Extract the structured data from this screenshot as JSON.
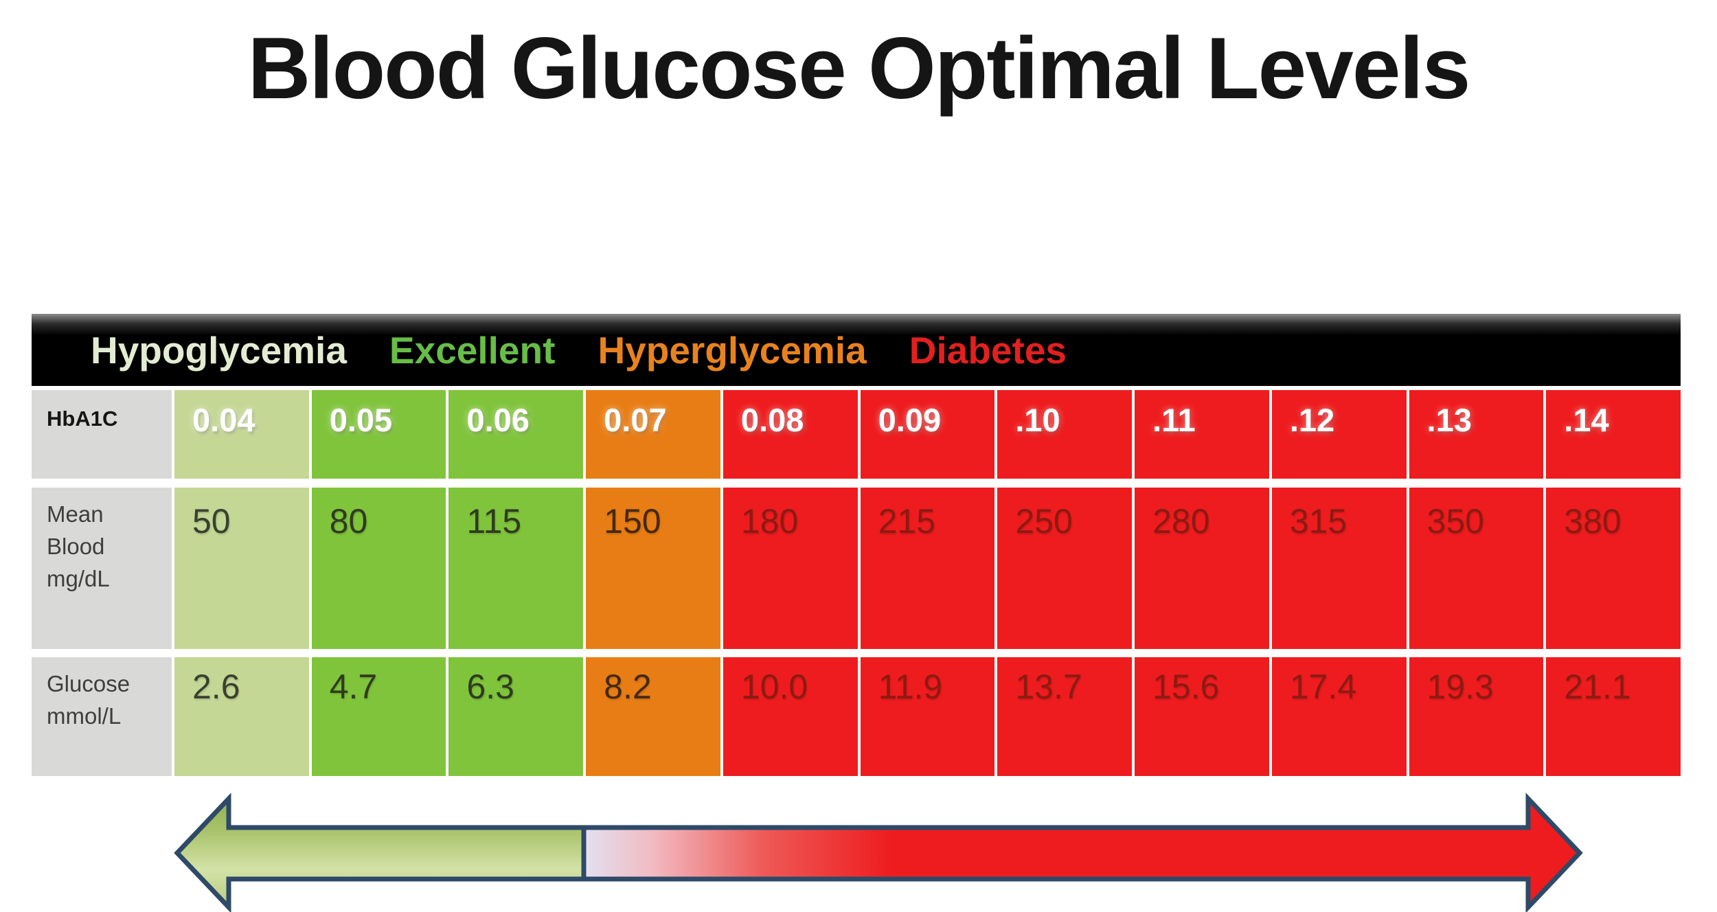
{
  "page": {
    "title": "Blood Glucose Optimal Levels"
  },
  "legend": {
    "items": [
      {
        "label": "Hypoglycemia",
        "color": "#e3ecd2"
      },
      {
        "label": "Excellent",
        "color": "#67bd48"
      },
      {
        "label": "Hyperglycemia",
        "color": "#e8821f"
      },
      {
        "label": "Diabetes",
        "color": "#e2201f"
      }
    ]
  },
  "zones": {
    "hypoglycemia": {
      "bg": "#c4d795",
      "value_text": "#3a4130"
    },
    "excellent": {
      "bg": "#80c43c",
      "value_text": "#2f3b20"
    },
    "hyperglycemia": {
      "bg": "#e87d15",
      "value_text": "#45290e"
    },
    "diabetes": {
      "bg": "#ee1c1e",
      "value_text": "#8c1a12"
    }
  },
  "chart_data": {
    "type": "table",
    "title": "Blood Glucose Optimal Levels",
    "row_headers": [
      "HbA1C",
      "Mean Blood mg/dL",
      "Glucose mmol/L"
    ],
    "zone_labels": [
      "Hypoglycemia",
      "Excellent",
      "Hyperglycemia",
      "Diabetes"
    ],
    "columns": [
      {
        "zone": "hypoglycemia",
        "hba1c": "0.04",
        "mean_blood_mg_dl": "50",
        "glucose_mmol_l": "2.6"
      },
      {
        "zone": "excellent",
        "hba1c": "0.05",
        "mean_blood_mg_dl": "80",
        "glucose_mmol_l": "4.7"
      },
      {
        "zone": "excellent",
        "hba1c": "0.06",
        "mean_blood_mg_dl": "115",
        "glucose_mmol_l": "6.3"
      },
      {
        "zone": "hyperglycemia",
        "hba1c": "0.07",
        "mean_blood_mg_dl": "150",
        "glucose_mmol_l": "8.2"
      },
      {
        "zone": "diabetes",
        "hba1c": "0.08",
        "mean_blood_mg_dl": "180",
        "glucose_mmol_l": "10.0"
      },
      {
        "zone": "diabetes",
        "hba1c": "0.09",
        "mean_blood_mg_dl": "215",
        "glucose_mmol_l": "11.9"
      },
      {
        "zone": "diabetes",
        "hba1c": ".10",
        "mean_blood_mg_dl": "250",
        "glucose_mmol_l": "13.7"
      },
      {
        "zone": "diabetes",
        "hba1c": ".11",
        "mean_blood_mg_dl": "280",
        "glucose_mmol_l": "15.6"
      },
      {
        "zone": "diabetes",
        "hba1c": ".12",
        "mean_blood_mg_dl": "315",
        "glucose_mmol_l": "17.4"
      },
      {
        "zone": "diabetes",
        "hba1c": ".13",
        "mean_blood_mg_dl": "350",
        "glucose_mmol_l": "19.3"
      },
      {
        "zone": "diabetes",
        "hba1c": ".14",
        "mean_blood_mg_dl": "380",
        "glucose_mmol_l": "21.1"
      }
    ]
  },
  "arrow": {
    "style": "double-headed",
    "left_segment_color": "#b4ca7e",
    "right_segment_color": "#ee1c1e",
    "outline_color": "#2e4a68"
  }
}
